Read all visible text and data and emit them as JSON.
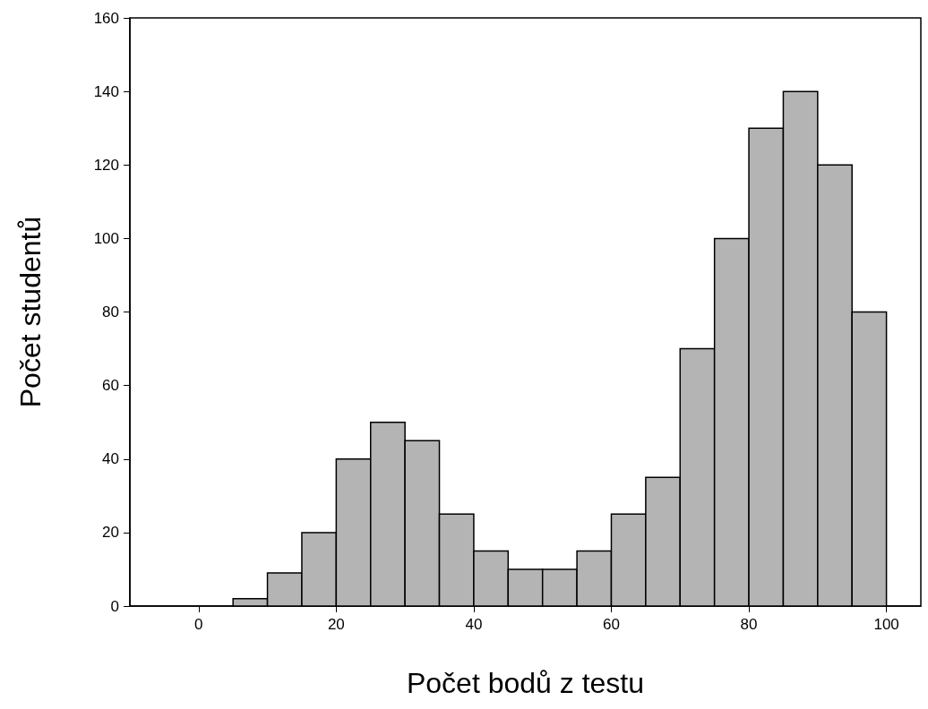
{
  "chart_data": {
    "type": "histogram",
    "xlabel": "Počet bodů z testu",
    "ylabel": "Počet studentů",
    "bins": [
      5,
      10,
      15,
      20,
      25,
      30,
      35,
      40,
      45,
      50,
      55,
      60,
      65,
      70,
      75,
      80,
      85,
      90,
      95,
      100
    ],
    "values": [
      2,
      9,
      20,
      40,
      50,
      45,
      25,
      15,
      10,
      10,
      15,
      25,
      35,
      70,
      100,
      130,
      140,
      120,
      80
    ],
    "color": "#b4b4b4",
    "xlim": [
      -10,
      105
    ],
    "xticks": [
      0,
      20,
      40,
      60,
      80,
      100
    ],
    "ylim": [
      0,
      160
    ],
    "yticks": [
      0,
      20,
      40,
      60,
      80,
      100,
      120,
      140,
      160
    ]
  }
}
